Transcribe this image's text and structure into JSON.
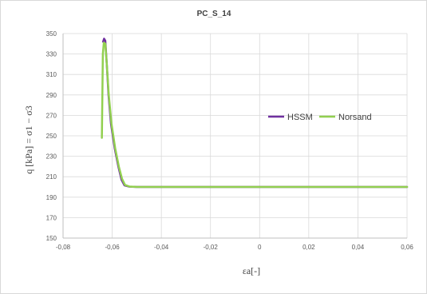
{
  "chart_data": {
    "type": "line",
    "title": "PC_S_14",
    "xlabel": "εa[-]",
    "ylabel": "q [kPa] = σ1 − σ3",
    "xlim": [
      -0.08,
      0.06
    ],
    "ylim": [
      150,
      350
    ],
    "x_ticks": [
      "-0,08",
      "-0,06",
      "-0,04",
      "-0,02",
      "0",
      "0,02",
      "0,04",
      "0,06"
    ],
    "y_ticks": [
      "150",
      "170",
      "190",
      "210",
      "230",
      "250",
      "270",
      "290",
      "310",
      "330",
      "350"
    ],
    "grid": true,
    "legend_position": "right-middle",
    "series": [
      {
        "name": "HSSM",
        "color": "#7030a0",
        "points": [
          [
            -0.0637,
            342
          ],
          [
            -0.0633,
            345
          ],
          [
            -0.0628,
            343
          ],
          [
            -0.0622,
            320
          ],
          [
            -0.0615,
            290
          ],
          [
            -0.0605,
            262
          ],
          [
            -0.059,
            238
          ],
          [
            -0.0575,
            220
          ],
          [
            -0.0562,
            207
          ],
          [
            -0.055,
            201.5
          ],
          [
            -0.053,
            200.3
          ],
          [
            -0.05,
            200
          ],
          [
            0.06,
            200
          ]
        ]
      },
      {
        "name": "Norsand",
        "color": "#92d050",
        "points": [
          [
            -0.0642,
            248
          ],
          [
            -0.0638,
            330
          ],
          [
            -0.0634,
            341
          ],
          [
            -0.0628,
            340
          ],
          [
            -0.0622,
            320
          ],
          [
            -0.0614,
            290
          ],
          [
            -0.0603,
            262
          ],
          [
            -0.0588,
            238
          ],
          [
            -0.0573,
            220
          ],
          [
            -0.056,
            208
          ],
          [
            -0.0548,
            202
          ],
          [
            -0.053,
            200.4
          ],
          [
            -0.05,
            200
          ],
          [
            0.06,
            200
          ]
        ]
      }
    ]
  }
}
